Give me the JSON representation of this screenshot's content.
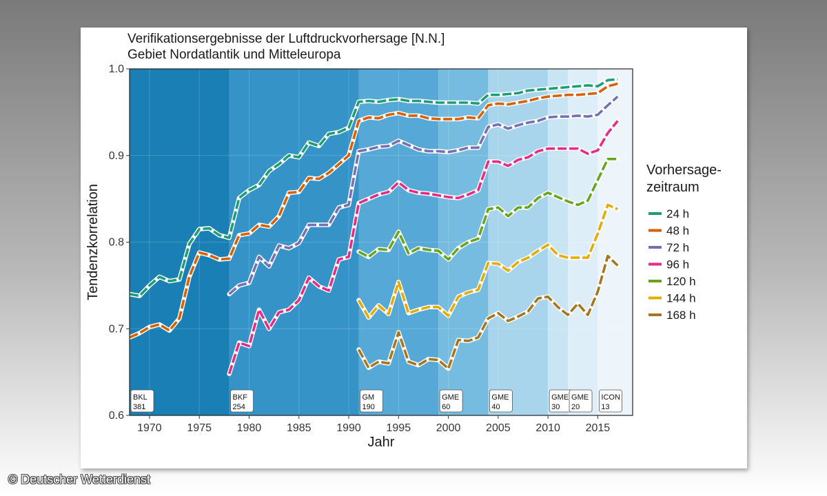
{
  "copyright": "© Deutscher Wetterdienst",
  "chart_data": {
    "type": "line",
    "title": "Verifikationsergebnisse der Luftdruckvorhersage [N.N.]",
    "subtitle": "Gebiet Nordatlantik und Mitteleuropa",
    "xlabel": "Jahr",
    "ylabel": "Tendenzkorrelation",
    "xlim": [
      1968,
      2018.5
    ],
    "ylim": [
      0.6,
      1.0
    ],
    "x_ticks": [
      1970,
      1975,
      1980,
      1985,
      1990,
      1995,
      2000,
      2005,
      2010,
      2015
    ],
    "y_ticks": [
      0.6,
      0.7,
      0.8,
      0.9,
      1.0
    ],
    "y_tick_labels": [
      "0.6",
      "0.7",
      "0.8",
      "0.9",
      "1.0"
    ],
    "grid": true,
    "legend": {
      "title_line1": "Vorhersage-",
      "title_line2": "zeitraum",
      "position": "right"
    },
    "periods": [
      {
        "model": "BKL",
        "resolution": "381",
        "start": 1968,
        "end": 1978,
        "color": "#1a7fb5"
      },
      {
        "model": "BKF",
        "resolution": "254",
        "start": 1978,
        "end": 1991,
        "color": "#3693c8"
      },
      {
        "model": "GM",
        "resolution": "190",
        "start": 1991,
        "end": 1999,
        "color": "#56a9d6"
      },
      {
        "model": "GME",
        "resolution": "60",
        "start": 1999,
        "end": 2004,
        "color": "#76bce0"
      },
      {
        "model": "GME",
        "resolution": "40",
        "start": 2004,
        "end": 2010,
        "color": "#a9d5ec"
      },
      {
        "model": "GME",
        "resolution": "30",
        "start": 2010,
        "end": 2012,
        "color": "#c9e4f3"
      },
      {
        "model": "GME",
        "resolution": "20",
        "start": 2012,
        "end": 2015,
        "color": "#deeef8"
      },
      {
        "model": "ICON",
        "resolution": "13",
        "start": 2015,
        "end": 2018.5,
        "color": "#edf5fb"
      }
    ],
    "series": [
      {
        "name": "24 h",
        "color": "#1b9e77",
        "x": [
          1968,
          1969,
          1970,
          1971,
          1972,
          1973,
          1974,
          1975,
          1976,
          1977,
          1978,
          1979,
          1980,
          1981,
          1982,
          1983,
          1984,
          1985,
          1986,
          1987,
          1988,
          1989,
          1990,
          1991,
          1992,
          1993,
          1994,
          1995,
          1996,
          1997,
          1998,
          1999,
          2000,
          2001,
          2002,
          2003,
          2004,
          2005,
          2006,
          2007,
          2008,
          2009,
          2010,
          2011,
          2012,
          2013,
          2014,
          2015,
          2016,
          2017
        ],
        "y": [
          0.74,
          0.738,
          0.75,
          0.76,
          0.755,
          0.757,
          0.798,
          0.815,
          0.816,
          0.808,
          0.805,
          0.851,
          0.86,
          0.866,
          0.882,
          0.89,
          0.9,
          0.898,
          0.915,
          0.911,
          0.925,
          0.927,
          0.932,
          0.962,
          0.963,
          0.962,
          0.964,
          0.965,
          0.963,
          0.963,
          0.962,
          0.961,
          0.961,
          0.961,
          0.961,
          0.96,
          0.97,
          0.97,
          0.971,
          0.972,
          0.975,
          0.976,
          0.977,
          0.978,
          0.979,
          0.98,
          0.981,
          0.98,
          0.987,
          0.988
        ]
      },
      {
        "name": "48 h",
        "color": "#d95f02",
        "x": [
          1968,
          1969,
          1970,
          1971,
          1972,
          1973,
          1974,
          1975,
          1976,
          1977,
          1978,
          1979,
          1980,
          1981,
          1982,
          1983,
          1984,
          1985,
          1986,
          1987,
          1988,
          1989,
          1990,
          1991,
          1992,
          1993,
          1994,
          1995,
          1996,
          1997,
          1998,
          1999,
          2000,
          2001,
          2002,
          2003,
          2004,
          2005,
          2006,
          2007,
          2008,
          2009,
          2010,
          2011,
          2012,
          2013,
          2014,
          2015,
          2016,
          2017
        ],
        "y": [
          0.69,
          0.695,
          0.702,
          0.705,
          0.698,
          0.712,
          0.76,
          0.788,
          0.785,
          0.78,
          0.781,
          0.808,
          0.81,
          0.82,
          0.818,
          0.83,
          0.857,
          0.858,
          0.874,
          0.873,
          0.88,
          0.89,
          0.9,
          0.94,
          0.944,
          0.943,
          0.947,
          0.949,
          0.946,
          0.946,
          0.943,
          0.942,
          0.942,
          0.942,
          0.944,
          0.943,
          0.958,
          0.96,
          0.959,
          0.961,
          0.963,
          0.966,
          0.968,
          0.969,
          0.97,
          0.97,
          0.971,
          0.972,
          0.98,
          0.983
        ]
      },
      {
        "name": "72 h",
        "color": "#7570b3",
        "x": [
          1978,
          1979,
          1980,
          1981,
          1982,
          1983,
          1984,
          1985,
          1986,
          1987,
          1988,
          1989,
          1990,
          1991,
          1992,
          1993,
          1994,
          1995,
          1996,
          1997,
          1998,
          1999,
          2000,
          2001,
          2002,
          2003,
          2004,
          2005,
          2006,
          2007,
          2008,
          2009,
          2010,
          2011,
          2012,
          2013,
          2014,
          2015,
          2016,
          2017
        ],
        "y": [
          0.74,
          0.75,
          0.753,
          0.783,
          0.772,
          0.796,
          0.793,
          0.799,
          0.82,
          0.82,
          0.82,
          0.84,
          0.843,
          0.905,
          0.907,
          0.91,
          0.911,
          0.917,
          0.912,
          0.907,
          0.905,
          0.905,
          0.904,
          0.906,
          0.909,
          0.909,
          0.933,
          0.936,
          0.931,
          0.935,
          0.938,
          0.94,
          0.944,
          0.945,
          0.945,
          0.946,
          0.945,
          0.947,
          0.958,
          0.968
        ]
      },
      {
        "name": "96 h",
        "color": "#e7298a",
        "x": [
          1978,
          1979,
          1980,
          1981,
          1982,
          1983,
          1984,
          1985,
          1986,
          1987,
          1988,
          1989,
          1990,
          1991,
          1992,
          1993,
          1994,
          1995,
          1996,
          1997,
          1998,
          1999,
          2000,
          2001,
          2002,
          2003,
          2004,
          2005,
          2006,
          2007,
          2008,
          2009,
          2010,
          2011,
          2012,
          2013,
          2014,
          2015,
          2016,
          2017
        ],
        "y": [
          0.648,
          0.684,
          0.68,
          0.722,
          0.7,
          0.719,
          0.722,
          0.733,
          0.759,
          0.749,
          0.744,
          0.78,
          0.783,
          0.845,
          0.85,
          0.855,
          0.858,
          0.869,
          0.86,
          0.857,
          0.856,
          0.854,
          0.852,
          0.851,
          0.855,
          0.86,
          0.893,
          0.893,
          0.888,
          0.895,
          0.898,
          0.905,
          0.908,
          0.908,
          0.908,
          0.908,
          0.902,
          0.906,
          0.926,
          0.94
        ]
      },
      {
        "name": "120 h",
        "color": "#66a61e",
        "x": [
          1991,
          1992,
          1993,
          1994,
          1995,
          1996,
          1997,
          1998,
          1999,
          2000,
          2001,
          2002,
          2003,
          2004,
          2005,
          2006,
          2007,
          2008,
          2009,
          2010,
          2011,
          2012,
          2013,
          2014,
          2015,
          2016,
          2017
        ],
        "y": [
          0.789,
          0.783,
          0.792,
          0.791,
          0.812,
          0.787,
          0.793,
          0.791,
          0.79,
          0.78,
          0.793,
          0.8,
          0.804,
          0.838,
          0.84,
          0.83,
          0.84,
          0.84,
          0.851,
          0.857,
          0.852,
          0.847,
          0.843,
          0.848,
          0.872,
          0.896,
          0.896
        ]
      },
      {
        "name": "144 h",
        "color": "#e6ab02",
        "x": [
          1991,
          1992,
          1993,
          1994,
          1995,
          1996,
          1997,
          1998,
          1999,
          2000,
          2001,
          2002,
          2003,
          2004,
          2005,
          2006,
          2007,
          2008,
          2009,
          2010,
          2011,
          2012,
          2013,
          2014,
          2015,
          2016,
          2017
        ],
        "y": [
          0.733,
          0.713,
          0.727,
          0.717,
          0.754,
          0.718,
          0.722,
          0.725,
          0.725,
          0.715,
          0.737,
          0.742,
          0.745,
          0.776,
          0.775,
          0.767,
          0.777,
          0.782,
          0.79,
          0.797,
          0.785,
          0.782,
          0.782,
          0.782,
          0.81,
          0.843,
          0.838
        ]
      },
      {
        "name": "168 h",
        "color": "#a6761d",
        "x": [
          1991,
          1992,
          1993,
          1994,
          1995,
          1996,
          1997,
          1998,
          1999,
          2000,
          2001,
          2002,
          2003,
          2004,
          2005,
          2006,
          2007,
          2008,
          2009,
          2010,
          2011,
          2012,
          2013,
          2014,
          2015,
          2016,
          2017
        ],
        "y": [
          0.676,
          0.655,
          0.662,
          0.66,
          0.696,
          0.662,
          0.658,
          0.665,
          0.664,
          0.654,
          0.687,
          0.686,
          0.69,
          0.712,
          0.718,
          0.709,
          0.714,
          0.72,
          0.735,
          0.737,
          0.725,
          0.716,
          0.729,
          0.716,
          0.743,
          0.784,
          0.773
        ]
      }
    ]
  }
}
